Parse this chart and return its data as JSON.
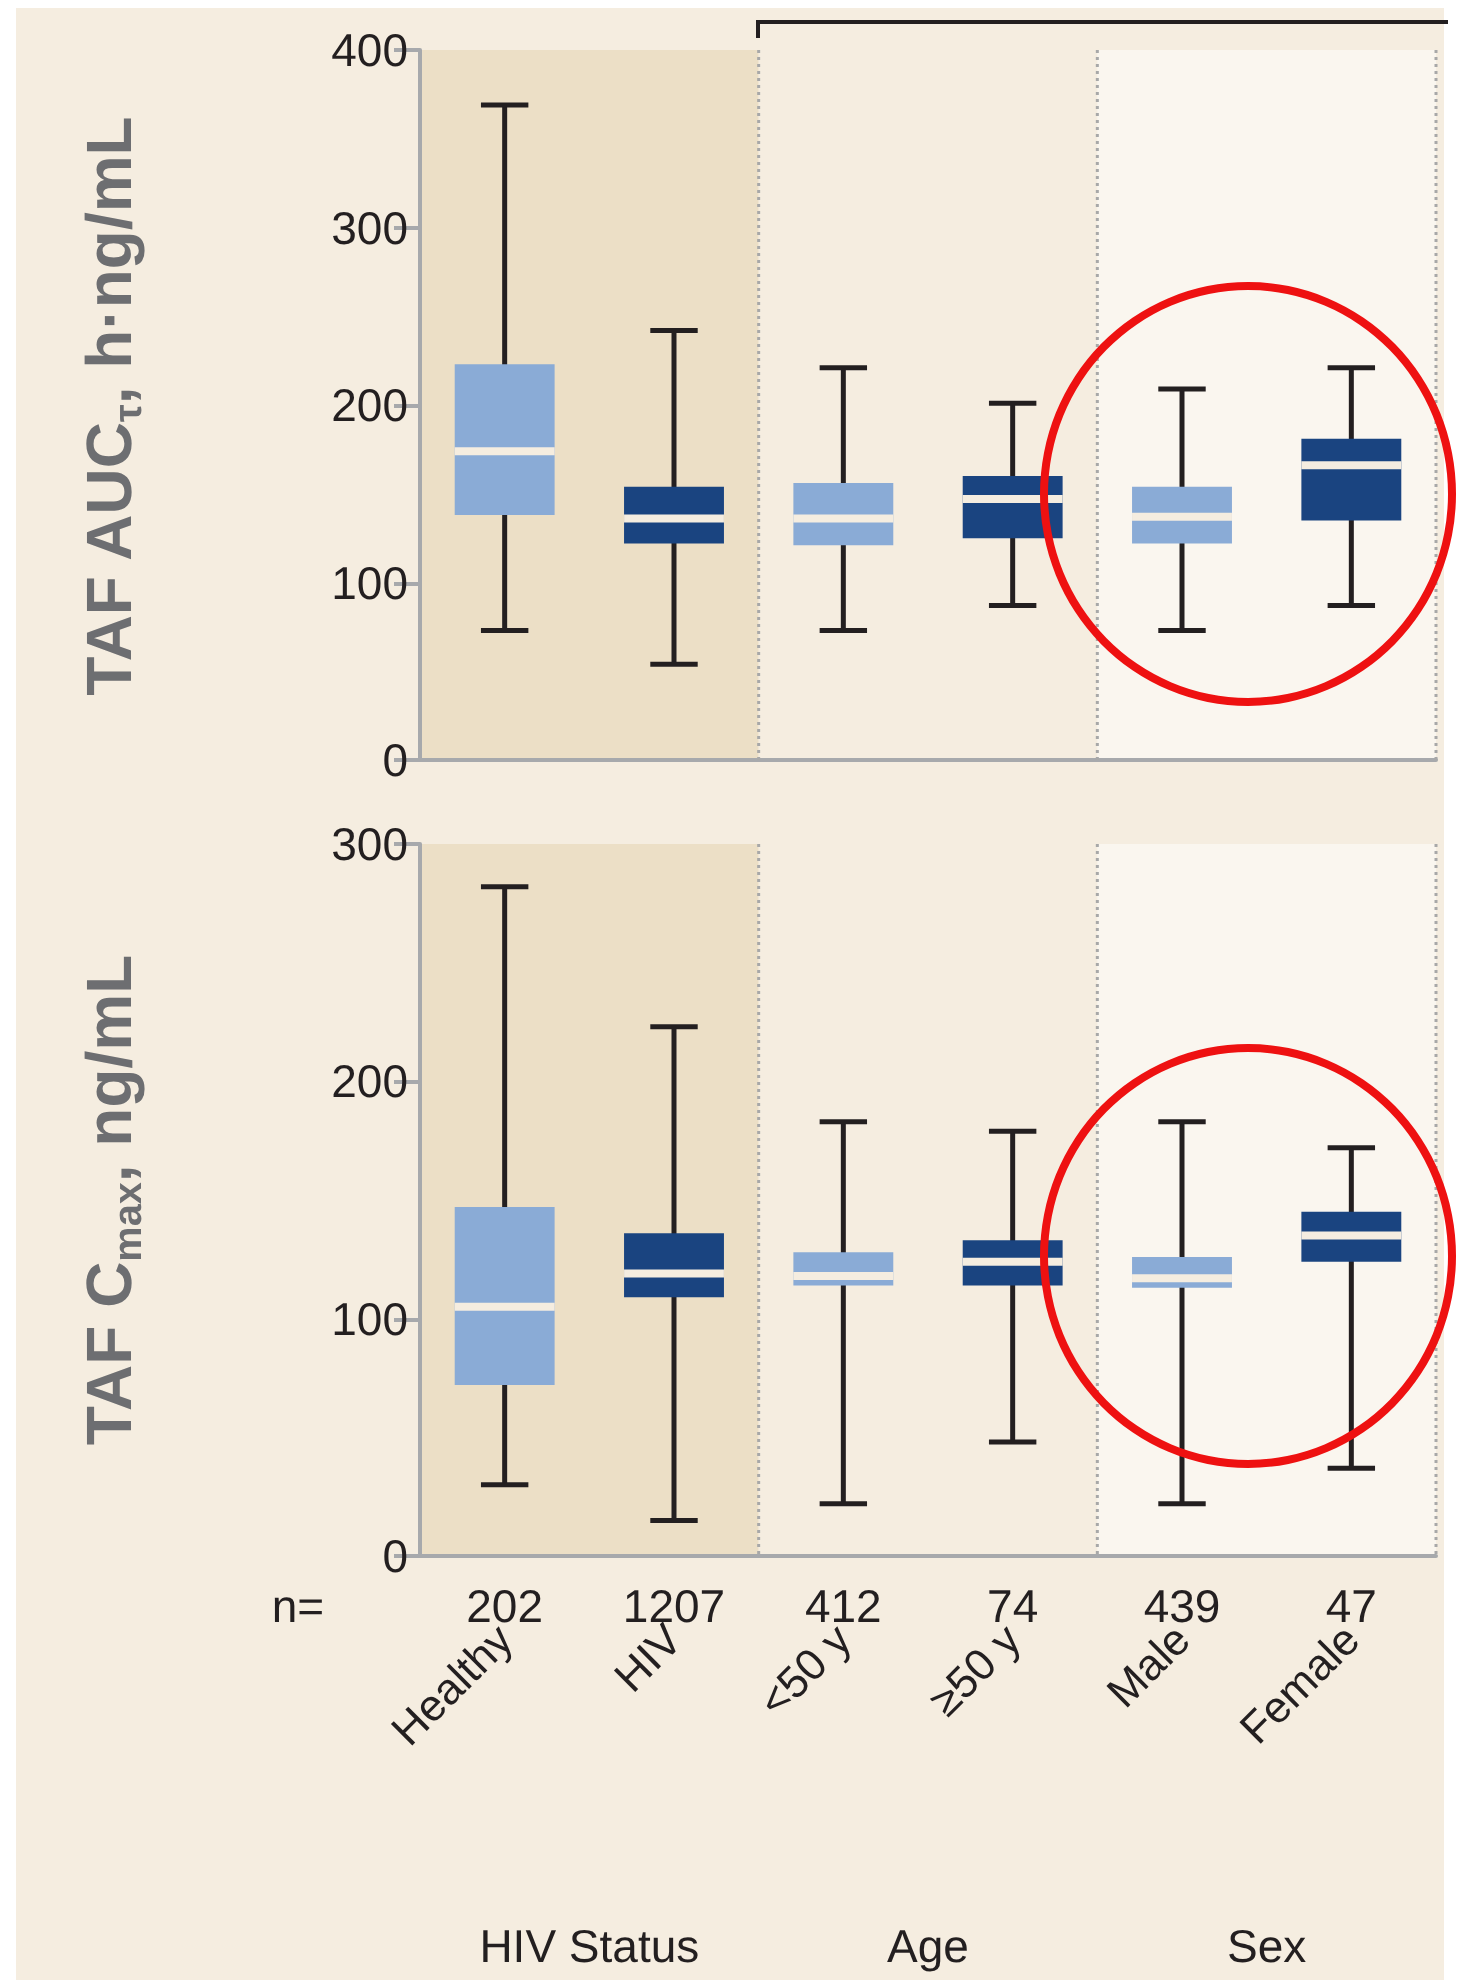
{
  "chart_data": [
    {
      "type": "box",
      "ylabel": "TAF AUC$_{τ}$, h·ng/mL",
      "categories": [
        "Healthy",
        "HIV",
        "<50 y",
        "≥50 y",
        "Male",
        "Female"
      ],
      "boxes": [
        {
          "low": 73,
          "q1": 138,
          "median": 174,
          "q3": 223,
          "high": 369
        },
        {
          "low": 54,
          "q1": 122,
          "median": 136,
          "q3": 154,
          "high": 242
        },
        {
          "low": 73,
          "q1": 121,
          "median": 136,
          "q3": 156,
          "high": 221
        },
        {
          "low": 87,
          "q1": 125,
          "median": 147,
          "q3": 160,
          "high": 201
        },
        {
          "low": 73,
          "q1": 122,
          "median": 137,
          "q3": 154,
          "high": 209
        },
        {
          "low": 87,
          "q1": 135,
          "median": 166,
          "q3": 181,
          "high": 221
        }
      ],
      "colors": [
        "#8aabd6",
        "#1a4480",
        "#8aabd6",
        "#1a4480",
        "#8aabd6",
        "#1a4480"
      ],
      "ylim": [
        0,
        400
      ],
      "yticks": [
        0,
        100,
        200,
        300,
        400
      ],
      "tick_labels": "y",
      "bands": [
        {
          "axis": "x",
          "from": "Healthy",
          "to": "HIV",
          "color": "#ecdfc6"
        },
        {
          "axis": "x",
          "from": "<50 y",
          "to": "≥50 y",
          "color": "#f5ede0"
        },
        {
          "axis": "x",
          "from": "Male",
          "to": "Female",
          "color": "#faf6ef"
        }
      ]
    },
    {
      "type": "box",
      "ylabel": "TAF C$_{max}$, ng/mL",
      "categories": [
        "Healthy",
        "HIV",
        "<50 y",
        "≥50 y",
        "Male",
        "Female"
      ],
      "boxes": [
        {
          "low": 30,
          "q1": 72,
          "median": 105,
          "q3": 147,
          "high": 282
        },
        {
          "low": 15,
          "q1": 109,
          "median": 119,
          "q3": 136,
          "high": 223
        },
        {
          "low": 22,
          "q1": 114,
          "median": 118,
          "q3": 128,
          "high": 183
        },
        {
          "low": 48,
          "q1": 114,
          "median": 124,
          "q3": 133,
          "high": 179
        },
        {
          "low": 22,
          "q1": 113,
          "median": 117,
          "q3": 126,
          "high": 183
        },
        {
          "low": 37,
          "q1": 124,
          "median": 135,
          "q3": 145,
          "high": 172
        }
      ],
      "colors": [
        "#8aabd6",
        "#1a4480",
        "#8aabd6",
        "#1a4480",
        "#8aabd6",
        "#1a4480"
      ],
      "ylim": [
        0,
        300
      ],
      "yticks": [
        0,
        100,
        200,
        300
      ],
      "bands": [
        {
          "axis": "x",
          "from": "Healthy",
          "to": "HIV",
          "color": "#ecdfc6"
        },
        {
          "axis": "x",
          "from": "<50 y",
          "to": "≥50 y",
          "color": "#f5ede0"
        },
        {
          "axis": "x",
          "from": "Male",
          "to": "Female",
          "color": "#faf6ef"
        }
      ],
      "annotations": [
        "n=",
        "202",
        "1207",
        "412",
        "74",
        "439",
        "47",
        "HIV Status",
        "Age",
        "Sex"
      ]
    }
  ]
}
